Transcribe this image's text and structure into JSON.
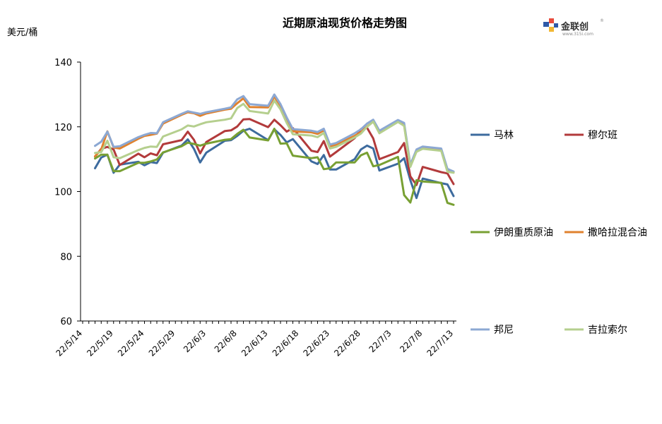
{
  "chart_data": {
    "type": "line",
    "title": "近期原油现货价格走势图",
    "ylabel": "美元/桶",
    "xlabel": "",
    "ylim": [
      60,
      140
    ],
    "yticks": [
      60,
      80,
      100,
      120,
      140
    ],
    "grid": false,
    "legend_position": "right",
    "x_tick_labels": [
      "22/5/14",
      "22/5/19",
      "22/5/24",
      "22/5/29",
      "22/6/3",
      "22/6/8",
      "22/6/13",
      "22/6/18",
      "22/6/23",
      "22/6/28",
      "22/7/3",
      "22/7/8",
      "22/7/13"
    ],
    "x": [
      "22/5/16",
      "22/5/17",
      "22/5/18",
      "22/5/19",
      "22/5/20",
      "22/5/23",
      "22/5/24",
      "22/5/25",
      "22/5/26",
      "22/5/27",
      "22/5/30",
      "22/5/31",
      "22/6/1",
      "22/6/2",
      "22/6/3",
      "22/6/6",
      "22/6/7",
      "22/6/8",
      "22/6/9",
      "22/6/10",
      "22/6/13",
      "22/6/14",
      "22/6/15",
      "22/6/16",
      "22/6/17",
      "22/6/20",
      "22/6/21",
      "22/6/22",
      "22/6/23",
      "22/6/24",
      "22/6/27",
      "22/6/28",
      "22/6/29",
      "22/6/30",
      "22/7/1",
      "22/7/4",
      "22/7/5",
      "22/7/6",
      "22/7/7",
      "22/7/8",
      "22/7/11",
      "22/7/12",
      "22/7/13"
    ],
    "series": [
      {
        "name": "马林",
        "color": "#3D6B9E",
        "values": [
          107.2,
          110.5,
          111.4,
          105.8,
          108.3,
          109.2,
          108.1,
          109.1,
          108.8,
          112.0,
          114.2,
          116.1,
          113.2,
          109.0,
          112.0,
          115.7,
          115.9,
          117.2,
          118.8,
          119.4,
          115.9,
          119.2,
          117.5,
          115.2,
          116.2,
          109.3,
          108.5,
          111.3,
          106.8,
          106.8,
          110.0,
          113.0,
          114.2,
          113.3,
          106.5,
          108.6,
          110.3,
          103.5,
          98.0,
          104.0,
          102.6,
          102.2,
          98.6
        ]
      },
      {
        "name": "穆尔班",
        "color": "#B23A3B",
        "values": [
          110.8,
          113.2,
          113.8,
          113.0,
          108.2,
          111.7,
          110.6,
          111.8,
          111.2,
          114.6,
          115.9,
          118.5,
          116.0,
          111.8,
          115.3,
          118.7,
          118.9,
          120.1,
          122.3,
          122.4,
          119.9,
          122.2,
          120.5,
          118.5,
          119.6,
          112.6,
          112.2,
          115.6,
          110.8,
          112.2,
          116.5,
          119.3,
          119.7,
          116.4,
          110.0,
          112.2,
          115.0,
          104.7,
          102.0,
          107.6,
          106.0,
          105.6,
          102.3
        ]
      },
      {
        "name": "伊朗重质原油",
        "color": "#78A033",
        "values": [
          110.2,
          111.4,
          111.4,
          106.3,
          106.3,
          108.9,
          108.9,
          109.3,
          109.9,
          112.1,
          114.0,
          115.1,
          114.7,
          114.2,
          114.8,
          116.0,
          116.2,
          117.8,
          119.1,
          116.7,
          115.8,
          119.4,
          114.8,
          114.9,
          111.1,
          110.3,
          110.6,
          106.9,
          107.2,
          109.0,
          109.0,
          111.2,
          112.0,
          107.8,
          108.2,
          110.7,
          98.9,
          96.6,
          103.5,
          103.1,
          102.7,
          96.5,
          95.9
        ]
      },
      {
        "name": "撒哈拉混合油",
        "color": "#E0822E",
        "values": [
          110.9,
          113.0,
          118.6,
          113.6,
          113.3,
          116.3,
          117.2,
          117.5,
          117.9,
          121.0,
          123.7,
          124.5,
          124.2,
          123.4,
          124.1,
          125.3,
          125.6,
          127.3,
          128.8,
          126.1,
          126.0,
          129.3,
          126.5,
          122.4,
          118.6,
          118.3,
          117.8,
          118.9,
          114.0,
          114.5,
          117.2,
          118.3,
          120.1,
          121.6,
          118.3,
          121.8,
          120.6,
          108.0,
          112.6,
          113.5,
          112.9,
          106.7,
          106.0
        ]
      },
      {
        "name": "邦尼",
        "color": "#8CA8D3",
        "values": [
          114.1,
          115.4,
          118.5,
          113.8,
          114.0,
          116.8,
          117.5,
          118.1,
          118.0,
          121.4,
          124.0,
          124.8,
          124.4,
          124.0,
          124.5,
          125.6,
          126.0,
          128.5,
          129.5,
          127.0,
          126.5,
          130.0,
          127.0,
          122.9,
          119.3,
          118.8,
          118.4,
          119.4,
          114.5,
          115.0,
          118.0,
          119.2,
          121.0,
          122.2,
          118.8,
          122.1,
          121.2,
          108.3,
          113.0,
          113.9,
          113.3,
          107.0,
          106.2
        ]
      },
      {
        "name": "吉拉索尔",
        "color": "#B5CF8E",
        "values": [
          111.9,
          112.2,
          115.7,
          110.6,
          110.3,
          112.8,
          113.5,
          113.9,
          113.8,
          117.0,
          119.2,
          120.4,
          120.1,
          120.8,
          121.4,
          122.2,
          122.6,
          125.8,
          127.1,
          124.9,
          124.1,
          128.1,
          125.4,
          121.2,
          117.7,
          117.3,
          116.8,
          118.1,
          113.3,
          113.8,
          116.7,
          117.9,
          120.0,
          121.6,
          118.0,
          121.5,
          120.3,
          107.6,
          112.3,
          113.2,
          112.6,
          106.1,
          105.8
        ]
      }
    ]
  },
  "logo": {
    "name": "金联创",
    "sub": "www.315i.com",
    "mark": "®"
  }
}
